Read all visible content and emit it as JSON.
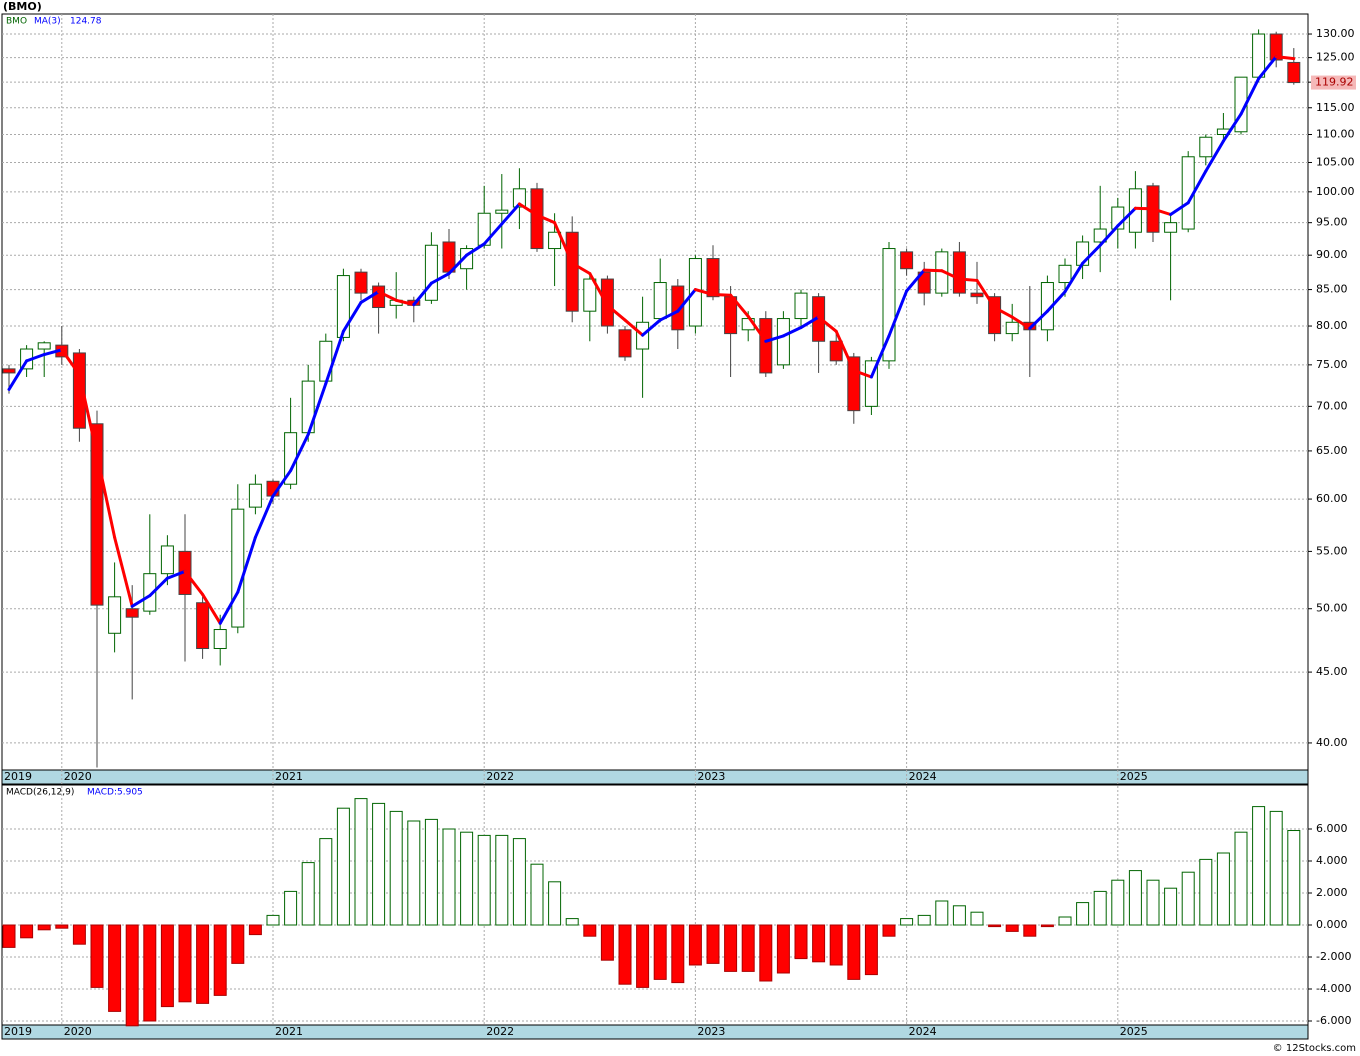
{
  "chart_data": [
    {
      "type": "candlestick",
      "title": "(BMO)",
      "symbol": "BMO",
      "categories": [
        "2019",
        null,
        null,
        "2020",
        null,
        null,
        null,
        null,
        null,
        null,
        null,
        null,
        null,
        null,
        null,
        "2021",
        null,
        null,
        null,
        null,
        null,
        null,
        null,
        null,
        null,
        null,
        null,
        "2022",
        null,
        null,
        null,
        null,
        null,
        null,
        null,
        null,
        null,
        null,
        null,
        "2023",
        null,
        null,
        null,
        null,
        null,
        null,
        null,
        null,
        null,
        null,
        null,
        "2024",
        null,
        null,
        null,
        null,
        null,
        null,
        null,
        null,
        null,
        null,
        null,
        "2025",
        null,
        null,
        null,
        null,
        null,
        null,
        null,
        null,
        null,
        null
      ],
      "open": [
        74.5,
        74.5,
        77,
        77.5,
        76.5,
        68,
        48,
        50,
        49.8,
        53,
        55,
        50.5,
        46.8,
        48.5,
        59.2,
        61.8,
        61.5,
        67,
        73,
        78.5,
        87.5,
        85.5,
        82.8,
        83.5,
        83.5,
        92,
        88,
        91.5,
        96.5,
        97.5,
        100.5,
        91,
        93.5,
        82,
        86.5,
        79.5,
        77,
        81,
        85.5,
        80,
        89.5,
        84,
        79.5,
        81,
        75,
        81,
        84,
        78,
        76,
        70,
        75.5,
        90.5,
        87.5,
        84.5,
        90.5,
        84.5,
        84,
        79,
        80.5,
        79.5,
        86,
        88.5,
        92,
        94,
        93.5,
        101,
        93.5,
        94,
        106,
        110,
        110.5,
        121,
        130,
        124
      ],
      "high": [
        75,
        77.5,
        78,
        80,
        77,
        69.5,
        54,
        52,
        58.5,
        56.5,
        58.5,
        51,
        49.5,
        61.5,
        62.5,
        62,
        71,
        75,
        79,
        88,
        88,
        86,
        87.5,
        84,
        93.5,
        94,
        91.5,
        101,
        103,
        104,
        101.5,
        96.5,
        96,
        87,
        87,
        80,
        84,
        89.5,
        86.5,
        90,
        91.5,
        85.5,
        82,
        82,
        82,
        85,
        84.5,
        79,
        76.5,
        76,
        92,
        91,
        89,
        91,
        92,
        89,
        84.5,
        83,
        85.5,
        87,
        89.5,
        93,
        101,
        99,
        103.5,
        101.5,
        96.5,
        107,
        110,
        114,
        121,
        131,
        130.5,
        127
      ],
      "low": [
        71.5,
        73.5,
        73.5,
        75,
        66,
        38.4,
        46.5,
        43,
        49.5,
        52,
        45.8,
        46,
        45.5,
        48,
        58.5,
        59.5,
        61,
        66,
        72.5,
        78,
        83.5,
        79,
        81,
        80.5,
        83,
        86.5,
        85,
        91,
        91,
        94,
        90.5,
        85.5,
        80.5,
        78,
        79,
        75.5,
        71,
        80.5,
        77,
        79,
        83.5,
        73.5,
        78,
        73.5,
        74.5,
        80,
        74,
        75,
        68,
        69,
        74.5,
        87,
        82.8,
        84,
        84,
        83,
        78,
        78,
        73.5,
        78,
        84,
        86.5,
        87.5,
        91,
        91,
        92,
        83.5,
        93.5,
        104.5,
        109,
        110,
        120,
        123,
        119.5
      ],
      "close": [
        74,
        77,
        77.8,
        76,
        67.5,
        50.3,
        51,
        49.3,
        53,
        55.5,
        51.2,
        46.8,
        48.3,
        59,
        61.5,
        60.3,
        67,
        73,
        78,
        87,
        84.5,
        82.5,
        83.5,
        82.8,
        91.5,
        87.5,
        91,
        96.5,
        97,
        100.5,
        91,
        93.5,
        82,
        86.5,
        80,
        76,
        80.5,
        86,
        79.5,
        89.5,
        84,
        79,
        81,
        74,
        81,
        84.5,
        78,
        75.5,
        69.5,
        75.5,
        91,
        88,
        84.5,
        90.5,
        84.5,
        84,
        79,
        80.5,
        79.5,
        86,
        88.5,
        92,
        94,
        97.5,
        100.5,
        93.5,
        95,
        106,
        109.5,
        111,
        121,
        130,
        124.5,
        119.92
      ],
      "up_color": "#006400",
      "down_color": "#ff0000",
      "ma": {
        "name": "MA(3)",
        "color_up": "#0000ff",
        "color_down": "#ff0000",
        "values": [
          72,
          75.5,
          76.3,
          76.9,
          73.8,
          64.6,
          56.3,
          50.2,
          51.1,
          52.6,
          53.2,
          51.2,
          48.8,
          51.4,
          56.3,
          60.3,
          62.9,
          66.8,
          72.7,
          79.3,
          83.2,
          84.7,
          83.5,
          82.9,
          85.9,
          87.3,
          90,
          91.7,
          94.8,
          98,
          96.2,
          95,
          88.8,
          87.3,
          82.8,
          80.8,
          78.8,
          80.8,
          82,
          85,
          84.3,
          84.2,
          81.3,
          78,
          78.7,
          79.8,
          81.2,
          79.3,
          74.3,
          73.5,
          78.7,
          84.8,
          87.8,
          87.7,
          86.5,
          86.3,
          82.5,
          81.2,
          79.7,
          82,
          84.7,
          88.8,
          91.5,
          94.5,
          97.3,
          97.2,
          96.3,
          98.2,
          103.5,
          108.8,
          113.8,
          120.7,
          125.2,
          124.78
        ]
      },
      "log": true,
      "grid": true,
      "ylim": [
        38.24,
        134.4
      ],
      "yticks": [
        {
          "value": 40,
          "label": "40.00"
        },
        {
          "value": 45,
          "label": "45.00"
        },
        {
          "value": 50,
          "label": "50.00"
        },
        {
          "value": 55,
          "label": "55.00"
        },
        {
          "value": 60,
          "label": "60.00"
        },
        {
          "value": 65,
          "label": "65.00"
        },
        {
          "value": 70,
          "label": "70.00"
        },
        {
          "value": 75,
          "label": "75.00"
        },
        {
          "value": 80,
          "label": "80.00"
        },
        {
          "value": 85,
          "label": "85.00"
        },
        {
          "value": 90,
          "label": "90.00"
        },
        {
          "value": 95,
          "label": "95.00"
        },
        {
          "value": 100,
          "label": "100.00"
        },
        {
          "value": 105,
          "label": "105.00"
        },
        {
          "value": 110,
          "label": "110.00"
        },
        {
          "value": 115,
          "label": "115.00"
        },
        {
          "value": 120,
          "label": "120.00"
        },
        {
          "value": 125,
          "label": "125.00"
        },
        {
          "value": 130,
          "label": "130.00"
        }
      ]
    },
    {
      "type": "bar",
      "name": "MACD(26,12,9)",
      "current_label": "MACD:5.905",
      "pos_color": "#006400",
      "neg_color": "#ff0000",
      "values": [
        -1.4,
        -0.8,
        -0.3,
        -0.2,
        -1.2,
        -3.9,
        -5.4,
        -6.3,
        -6.0,
        -5.1,
        -4.8,
        -4.9,
        -4.4,
        -2.4,
        -0.6,
        0.6,
        2.1,
        3.9,
        5.4,
        7.3,
        7.9,
        7.6,
        7.1,
        6.5,
        6.6,
        6.0,
        5.8,
        5.6,
        5.6,
        5.4,
        3.8,
        2.7,
        0.4,
        -0.7,
        -2.2,
        -3.7,
        -3.9,
        -3.4,
        -3.6,
        -2.5,
        -2.4,
        -2.9,
        -2.9,
        -3.5,
        -3.0,
        -2.1,
        -2.3,
        -2.5,
        -3.4,
        -3.1,
        -0.7,
        0.4,
        0.6,
        1.5,
        1.2,
        0.8,
        -0.1,
        -0.4,
        -0.7,
        -0.1,
        0.5,
        1.4,
        2.1,
        2.8,
        3.4,
        2.8,
        2.3,
        3.3,
        4.1,
        4.5,
        5.8,
        7.4,
        7.1,
        5.905
      ],
      "grid": true,
      "ylim": [
        -6.25,
        8.75
      ],
      "yticks": [
        {
          "value": -6,
          "label": "-6.000"
        },
        {
          "value": -4,
          "label": "-4.000"
        },
        {
          "value": -2,
          "label": "-2.000"
        },
        {
          "value": 0,
          "label": "0.000"
        },
        {
          "value": 2,
          "label": "2.000"
        },
        {
          "value": 4,
          "label": "4.000"
        },
        {
          "value": 6,
          "label": "6.000"
        }
      ]
    }
  ],
  "footer": "© 12Stocks.com"
}
